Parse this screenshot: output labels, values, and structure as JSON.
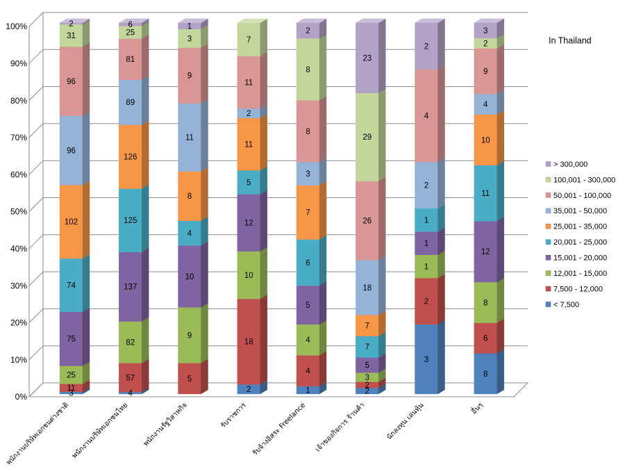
{
  "chart_data": {
    "type": "bar",
    "stacked": "percent",
    "three_d": true,
    "title": "In Thailand",
    "ylim": [
      0,
      100
    ],
    "y_tick_labels": [
      "0%",
      "10%",
      "20%",
      "30%",
      "40%",
      "50%",
      "60%",
      "70%",
      "80%",
      "90%",
      "100%"
    ],
    "grid": true,
    "legend_position": "right",
    "data_labels": true,
    "categories": [
      "พนักงานบริษัทเอกชนต่างชาติ",
      "พนักงานบริษัทเอกชนไทย",
      "พนักงานรัฐวิสาหกิจ",
      "รับราชการ",
      "รับจ้างอิสระ Freelance",
      "เจ้าของกิจการ ร้านค้า",
      "นักลงทุน เล่นหุ้น",
      "อื่นๆ"
    ],
    "series": [
      {
        "name": "< 7,500",
        "color": "#4F81BD",
        "values": [
          3,
          4,
          0,
          2,
          1,
          2,
          3,
          8
        ]
      },
      {
        "name": "7,500 - 12,000",
        "color": "#C0504D",
        "values": [
          11,
          57,
          5,
          18,
          4,
          2,
          2,
          6
        ]
      },
      {
        "name": "12,001 - 15,000",
        "color": "#9BBB59",
        "values": [
          25,
          82,
          9,
          10,
          4,
          3,
          1,
          8
        ]
      },
      {
        "name": "15,001 - 20,000",
        "color": "#8064A2",
        "values": [
          75,
          137,
          10,
          12,
          5,
          5,
          1,
          12
        ]
      },
      {
        "name": "20,001 - 25,000",
        "color": "#4BACC6",
        "values": [
          74,
          125,
          4,
          5,
          6,
          7,
          1,
          11
        ]
      },
      {
        "name": "25,001 - 35,000",
        "color": "#F79646",
        "values": [
          102,
          126,
          8,
          11,
          7,
          7,
          0,
          10
        ]
      },
      {
        "name": "35,001 - 50,000",
        "color": "#95B3D7",
        "values": [
          96,
          89,
          11,
          2,
          3,
          18,
          2,
          4
        ]
      },
      {
        "name": "50,001 - 100,000",
        "color": "#D99694",
        "values": [
          96,
          81,
          9,
          11,
          8,
          26,
          4,
          9
        ]
      },
      {
        "name": "100,001 - 300,000",
        "color": "#C3D69B",
        "values": [
          31,
          25,
          3,
          7,
          8,
          29,
          0,
          2
        ]
      },
      {
        "name": "> 300,000",
        "color": "#B3A2C7",
        "values": [
          2,
          6,
          1,
          0,
          2,
          23,
          2,
          3
        ]
      }
    ]
  }
}
